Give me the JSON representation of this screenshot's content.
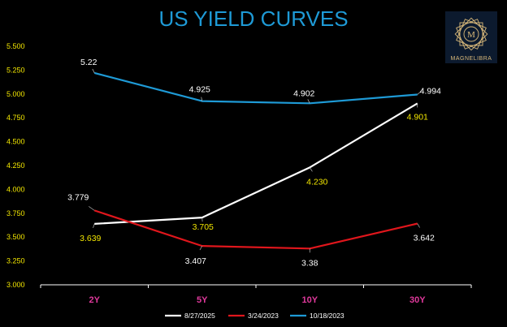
{
  "chart_data": {
    "type": "line",
    "title": "US YIELD CURVES",
    "categories": [
      "2Y",
      "5Y",
      "10Y",
      "30Y"
    ],
    "yticks": [
      "3.000",
      "3.250",
      "3.500",
      "3.750",
      "4.000",
      "4.250",
      "4.500",
      "4.750",
      "5.000",
      "5.250",
      "5.500"
    ],
    "ylim": [
      3.0,
      5.5
    ],
    "grid": false,
    "legend_position": "bottom",
    "series": [
      {
        "name": "8/27/2025",
        "color": "#ffffff",
        "label_color": "#f2e600",
        "values": [
          3.639,
          3.705,
          4.23,
          4.901
        ],
        "labels": [
          "3.639",
          "3.705",
          "4.230",
          "4.901"
        ]
      },
      {
        "name": "3/24/2023",
        "color": "#e0161c",
        "label_color": "#ffffff",
        "values": [
          3.779,
          3.407,
          3.38,
          3.642
        ],
        "labels": [
          "3.779",
          "3.407",
          "3.38",
          "3.642"
        ]
      },
      {
        "name": "10/18/2023",
        "color": "#1e9ad6",
        "label_color": "#ffffff",
        "values": [
          5.22,
          4.925,
          4.902,
          4.994
        ],
        "labels": [
          "5.22",
          "4.925",
          "4.902",
          "4.994"
        ]
      }
    ]
  },
  "logo": {
    "brand_text": "MAGNELIBRA",
    "monogram": "M",
    "color": "#d9b97a"
  }
}
